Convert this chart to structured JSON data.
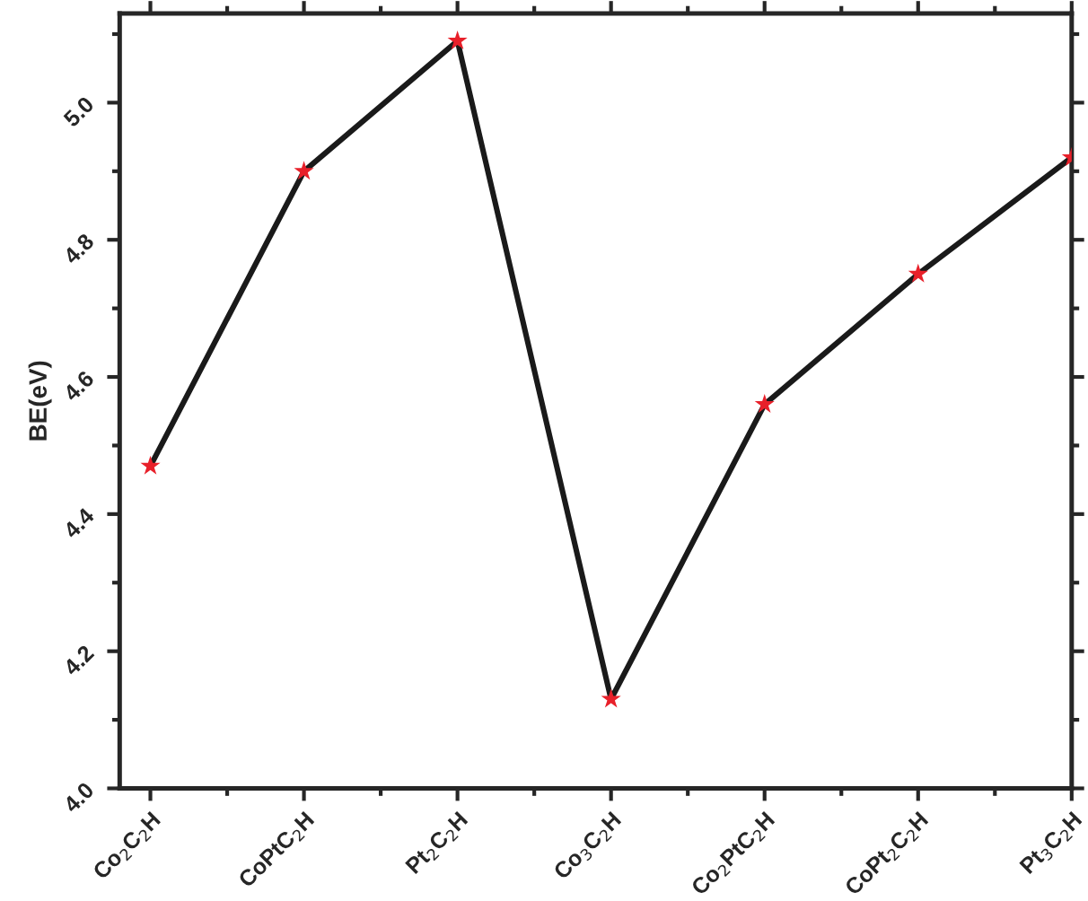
{
  "chart_data": {
    "type": "line",
    "ylabel": "BE(eV)",
    "categories": [
      "Co$_{2}$C$_{2}$H",
      "CoPtC$_{2}$H",
      "Pt$_{2}$C$_{2}$H",
      "Co$_{3}$C$_{2}$H",
      "Co$_{2}$PtC$_{2}$H",
      "CoPt$_{2}$C$_{2}$H",
      "Pt$_{3}$C$_{2}$H"
    ],
    "series": [
      {
        "color": "#1a1a1a",
        "colors": [
          "#e8202a",
          "#e8202a",
          "#e8202a",
          "#e8202a",
          "#e8202a",
          "#e8202a",
          "#e8202a"
        ],
        "values": [
          4.47,
          4.9,
          5.09,
          4.13,
          4.56,
          4.75,
          4.92
        ]
      }
    ],
    "ylim": [
      4.0,
      5.13
    ],
    "yticks": [
      {
        "value": 4.0,
        "label": "4.0"
      },
      4.2,
      4.4,
      4.6,
      4.8,
      {
        "value": 5.0,
        "label": "5.0"
      }
    ],
    "marker": "star",
    "line_style": "solid",
    "grid": false
  }
}
